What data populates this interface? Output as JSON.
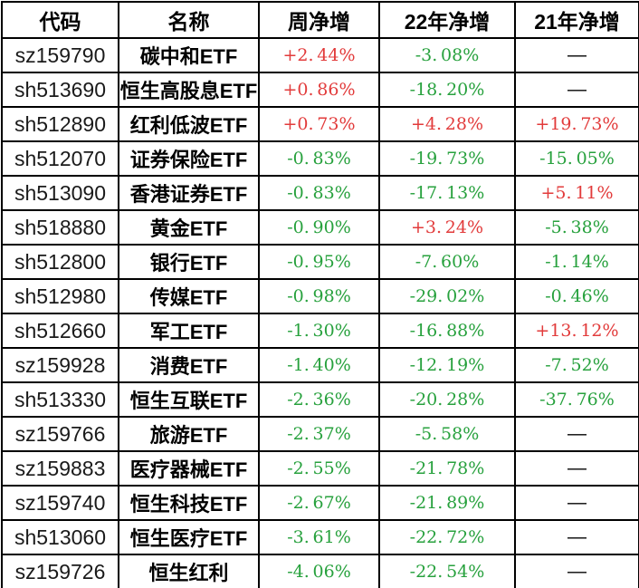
{
  "colors": {
    "positive": "#e23b3b",
    "negative": "#27a13d",
    "neutral": "#000000",
    "border": "#000000",
    "background": "#ffffff"
  },
  "na_symbol": "—",
  "chart_data": {
    "type": "table",
    "title": "",
    "columns": [
      "代码",
      "名称",
      "周净增",
      "22年净增",
      "21年净增"
    ],
    "rows": [
      {
        "code": "sz159790",
        "name": "碳中和ETF",
        "week": "+2.44%",
        "y22": "-3.08%",
        "y21": "—"
      },
      {
        "code": "sh513690",
        "name": "恒生高股息ETF",
        "week": "+0.86%",
        "y22": "-18.20%",
        "y21": "—"
      },
      {
        "code": "sh512890",
        "name": "红利低波ETF",
        "week": "+0.73%",
        "y22": "+4.28%",
        "y21": "+19.73%"
      },
      {
        "code": "sh512070",
        "name": "证券保险ETF",
        "week": "-0.83%",
        "y22": "-19.73%",
        "y21": "-15.05%"
      },
      {
        "code": "sh513090",
        "name": "香港证券ETF",
        "week": "-0.83%",
        "y22": "-17.13%",
        "y21": "+5.11%"
      },
      {
        "code": "sh518880",
        "name": "黄金ETF",
        "week": "-0.90%",
        "y22": "+3.24%",
        "y21": "-5.38%"
      },
      {
        "code": "sh512800",
        "name": "银行ETF",
        "week": "-0.95%",
        "y22": "-7.60%",
        "y21": "-1.14%"
      },
      {
        "code": "sh512980",
        "name": "传媒ETF",
        "week": "-0.98%",
        "y22": "-29.02%",
        "y21": "-0.46%"
      },
      {
        "code": "sh512660",
        "name": "军工ETF",
        "week": "-1.30%",
        "y22": "-16.88%",
        "y21": "+13.12%"
      },
      {
        "code": "sz159928",
        "name": "消费ETF",
        "week": "-1.40%",
        "y22": "-12.19%",
        "y21": "-7.52%"
      },
      {
        "code": "sh513330",
        "name": "恒生互联ETF",
        "week": "-2.36%",
        "y22": "-20.28%",
        "y21": "-37.76%"
      },
      {
        "code": "sz159766",
        "name": "旅游ETF",
        "week": "-2.37%",
        "y22": "-5.58%",
        "y21": "—"
      },
      {
        "code": "sz159883",
        "name": "医疗器械ETF",
        "week": "-2.55%",
        "y22": "-21.78%",
        "y21": "—"
      },
      {
        "code": "sz159740",
        "name": "恒生科技ETF",
        "week": "-2.67%",
        "y22": "-21.89%",
        "y21": "—"
      },
      {
        "code": "sh513060",
        "name": "恒生医疗ETF",
        "week": "-3.61%",
        "y22": "-22.72%",
        "y21": "—"
      },
      {
        "code": "sz159726",
        "name": "恒生红利",
        "week": "-4.06%",
        "y22": "-22.54%",
        "y21": "—"
      }
    ]
  }
}
